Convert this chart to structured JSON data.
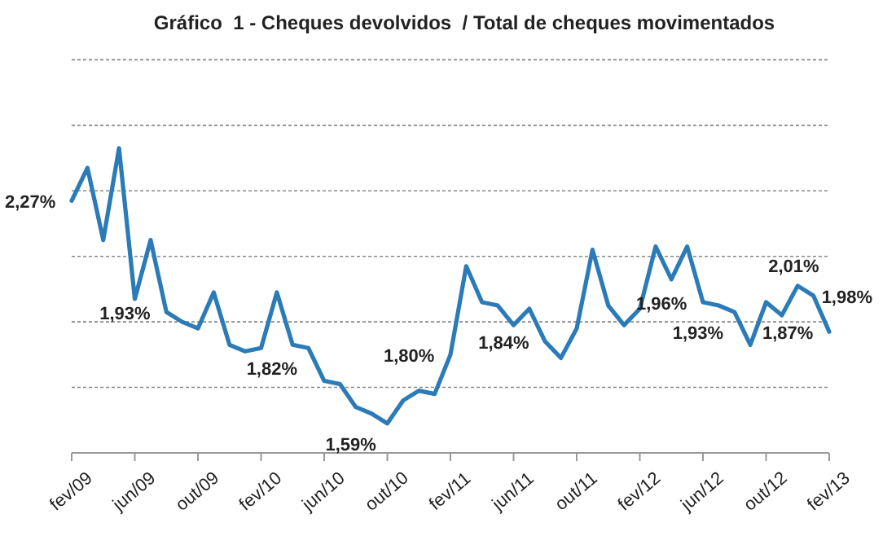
{
  "chart_data": {
    "type": "line",
    "title": "Gráfico  1 - Cheques devolvidos  / Total de cheques movimentados",
    "categories": [
      "fev/09",
      null,
      null,
      null,
      "jun/09",
      null,
      null,
      null,
      "out/09",
      null,
      null,
      null,
      "fev/10",
      null,
      null,
      null,
      "jun/10",
      null,
      null,
      null,
      "out/10",
      null,
      null,
      null,
      "fev/11",
      null,
      null,
      null,
      "jun/11",
      null,
      null,
      null,
      "out/11",
      null,
      null,
      null,
      "fev/12",
      null,
      null,
      null,
      "jun/12",
      null,
      null,
      null,
      "out/12",
      null,
      null,
      null,
      "fev/13"
    ],
    "series": [
      {
        "color": "#2b7bb9",
        "values": [
          2.27,
          2.37,
          2.15,
          2.43,
          1.97,
          2.15,
          1.93,
          1.9,
          1.88,
          1.99,
          1.83,
          1.81,
          1.82,
          1.99,
          1.83,
          1.82,
          1.72,
          1.71,
          1.64,
          1.62,
          1.59,
          1.66,
          1.69,
          1.68,
          1.8,
          2.07,
          1.96,
          1.95,
          1.89,
          1.94,
          1.84,
          1.79,
          1.88,
          2.12,
          1.95,
          1.89,
          1.94,
          2.13,
          2.03,
          2.13,
          1.96,
          1.95,
          1.93,
          1.83,
          1.96,
          1.92,
          2.01,
          1.98,
          1.87
        ],
        "value_labels": [
          "2,27%",
          null,
          null,
          null,
          null,
          null,
          "1,93%",
          null,
          null,
          null,
          null,
          null,
          null,
          null,
          null,
          "1,82%",
          null,
          null,
          null,
          null,
          "1,59%",
          null,
          null,
          null,
          "1,80%",
          null,
          null,
          null,
          null,
          null,
          "1,84%",
          null,
          null,
          null,
          null,
          null,
          null,
          null,
          null,
          null,
          "1,96%",
          null,
          "1,93%",
          null,
          null,
          null,
          "2,01%",
          "1,98%",
          "1,87%"
        ]
      }
    ],
    "ylim": [
      1.5,
      2.7
    ],
    "yticks": [
      {
        "value": 1.7,
        "label": null
      },
      {
        "value": 1.9,
        "label": null
      },
      {
        "value": 2.1,
        "label": null
      },
      {
        "value": 2.3,
        "label": null
      },
      {
        "value": 2.5,
        "label": null
      },
      {
        "value": 2.7,
        "label": null
      }
    ],
    "grid": "y",
    "tick_labels": "x",
    "marker": "none",
    "line_style": "solid"
  }
}
